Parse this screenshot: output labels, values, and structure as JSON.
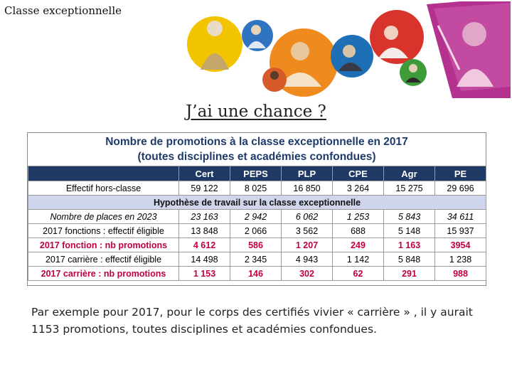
{
  "slide": {
    "title": "Classe exceptionnelle",
    "subtitle": "J’ai une chance ?"
  },
  "table": {
    "title_line1": "Nombre de promotions à la classe exceptionnelle en 2017",
    "title_line2": "(toutes disciplines et académies confondues)",
    "headers": [
      "",
      "Cert",
      "PEPS",
      "PLP",
      "CPE",
      "Agr",
      "PE"
    ],
    "row_effectif": {
      "label": "Effectif hors-classe",
      "values": [
        "59 122",
        "8 025",
        "16 850",
        "3 264",
        "15 275",
        "29 696"
      ]
    },
    "section_label": "Hypothèse de travail sur la classe exceptionnelle",
    "row_places": {
      "label": "Nombre de places en 2023",
      "values": [
        "23 163",
        "2 942",
        "6 062",
        "1 253",
        "5 843",
        "34 611"
      ]
    },
    "row_fonctions_eligible": {
      "label": "2017 fonctions : effectif éligible",
      "values": [
        "13 848",
        "2 066",
        "3 562",
        "688",
        "5 148",
        "15 937"
      ]
    },
    "row_fonction_promotions": {
      "label": "2017 fonction : nb promotions",
      "values": [
        "4 612",
        "586",
        "1 207",
        "249",
        "1 163",
        "3954"
      ]
    },
    "row_carriere_eligible": {
      "label": "2017 carrière : effectif éligible",
      "values": [
        "14 498",
        "2 345",
        "4 943",
        "1 142",
        "5 848",
        "1 238"
      ]
    },
    "row_carriere_promotions": {
      "label": "2017 carrière : nb promotions",
      "values": [
        "1 153",
        "146",
        "302",
        "62",
        "291",
        "988"
      ]
    }
  },
  "body": {
    "text": "Par exemple pour 2017, pour le corps des certifiés vivier « carrière » , il y aurait 1153 promotions, toutes disciplines et académies confondues."
  },
  "colors": {
    "header_bg": "#1f3864",
    "section_bg": "#cfd5ea",
    "title_blue": "#1f3b6a",
    "highlight_red": "#c0003c"
  }
}
